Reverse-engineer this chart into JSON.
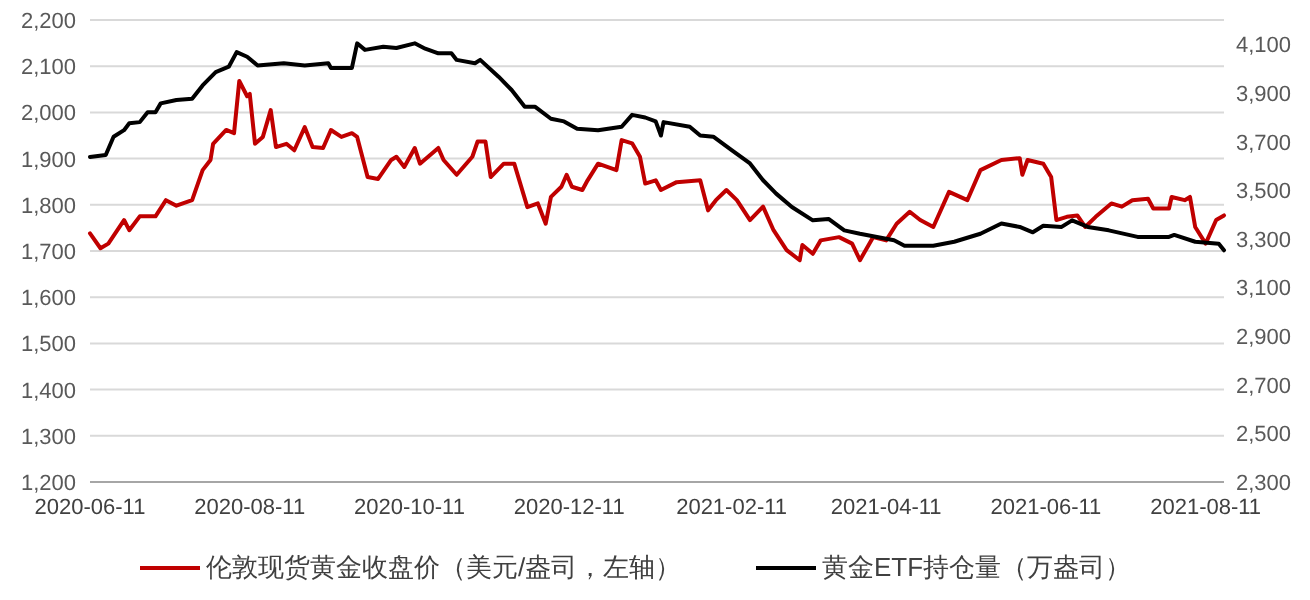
{
  "chart_data": {
    "type": "line",
    "legend": "bottom",
    "grid": "y",
    "marker": "none",
    "line_style": "solid",
    "xlim": [
      "2020-06-11",
      "2021-08-18"
    ],
    "xticks": [
      "2020-06-11",
      "2020-08-11",
      "2020-10-11",
      "2020-12-11",
      "2021-02-11",
      "2021-04-11",
      "2021-06-11",
      "2021-08-11"
    ],
    "ylim": [
      1200,
      2200
    ],
    "yticks": [
      {
        "value": 1200,
        "label": "1,200"
      },
      {
        "value": 1300,
        "label": "1,300"
      },
      {
        "value": 1400,
        "label": "1,400"
      },
      {
        "value": 1500,
        "label": "1,500"
      },
      {
        "value": 1600,
        "label": "1,600"
      },
      {
        "value": 1700,
        "label": "1,700"
      },
      {
        "value": 1800,
        "label": "1,800"
      },
      {
        "value": 1900,
        "label": "1,900"
      },
      {
        "value": 2000,
        "label": "2,000"
      },
      {
        "value": 2100,
        "label": "2,100"
      },
      {
        "value": 2200,
        "label": "2,200"
      }
    ],
    "y2lim": [
      2300,
      4200
    ],
    "y2ticks": [
      {
        "value": 2300,
        "label": "2,300"
      },
      {
        "value": 2500,
        "label": "2,500"
      },
      {
        "value": 2700,
        "label": "2,700"
      },
      {
        "value": 2900,
        "label": "2,900"
      },
      {
        "value": 3100,
        "label": "3,100"
      },
      {
        "value": 3300,
        "label": "3,300"
      },
      {
        "value": 3500,
        "label": "3,500"
      },
      {
        "value": 3700,
        "label": "3,700"
      },
      {
        "value": 3900,
        "label": "3,900"
      },
      {
        "value": 4100,
        "label": "4,100"
      }
    ],
    "series": [
      {
        "name": "伦敦现货黄金收盘价（美元/盎司，左轴）",
        "color": "#c00000",
        "x": [
          "2020-06-11",
          "2020-06-15",
          "2020-06-18",
          "2020-06-24",
          "2020-06-26",
          "2020-06-30",
          "2020-07-06",
          "2020-07-10",
          "2020-07-14",
          "2020-07-20",
          "2020-07-24",
          "2020-07-27",
          "2020-07-28",
          "2020-08-02",
          "2020-08-05",
          "2020-08-07",
          "2020-08-10",
          "2020-08-11",
          "2020-08-13",
          "2020-08-16",
          "2020-08-19",
          "2020-08-21",
          "2020-08-25",
          "2020-08-28",
          "2020-09-01",
          "2020-09-04",
          "2020-09-08",
          "2020-09-11",
          "2020-09-15",
          "2020-09-19",
          "2020-09-21",
          "2020-09-25",
          "2020-09-29",
          "2020-10-04",
          "2020-10-06",
          "2020-10-09",
          "2020-10-13",
          "2020-10-15",
          "2020-10-22",
          "2020-10-24",
          "2020-10-29",
          "2020-11-04",
          "2020-11-06",
          "2020-11-09",
          "2020-11-11",
          "2020-11-16",
          "2020-11-20",
          "2020-11-25",
          "2020-11-29",
          "2020-12-02",
          "2020-12-04",
          "2020-12-08",
          "2020-12-10",
          "2020-12-12",
          "2020-12-16",
          "2020-12-18",
          "2020-12-22",
          "2020-12-29",
          "2020-12-31",
          "2021-01-04",
          "2021-01-07",
          "2021-01-09",
          "2021-01-13",
          "2021-01-15",
          "2021-01-21",
          "2021-01-30",
          "2021-02-02",
          "2021-02-05",
          "2021-02-09",
          "2021-02-13",
          "2021-02-18",
          "2021-02-23",
          "2021-02-27",
          "2021-03-04",
          "2021-03-09",
          "2021-03-10",
          "2021-03-14",
          "2021-03-17",
          "2021-03-24",
          "2021-03-29",
          "2021-04-01",
          "2021-04-06",
          "2021-04-11",
          "2021-04-15",
          "2021-04-20",
          "2021-04-24",
          "2021-04-29",
          "2021-05-05",
          "2021-05-12",
          "2021-05-17",
          "2021-05-25",
          "2021-06-01",
          "2021-06-02",
          "2021-06-04",
          "2021-06-10",
          "2021-06-13",
          "2021-06-15",
          "2021-06-19",
          "2021-06-23",
          "2021-06-26",
          "2021-06-30",
          "2021-07-06",
          "2021-07-10",
          "2021-07-14",
          "2021-07-20",
          "2021-07-22",
          "2021-07-28",
          "2021-07-29",
          "2021-08-03",
          "2021-08-05",
          "2021-08-07",
          "2021-08-11",
          "2021-08-15",
          "2021-08-18"
        ],
        "values": [
          1738,
          1706,
          1716,
          1767,
          1745,
          1775,
          1775,
          1810,
          1798,
          1810,
          1875,
          1897,
          1932,
          1962,
          1955,
          2068,
          2035,
          2040,
          1932,
          1947,
          2005,
          1925,
          1932,
          1918,
          1968,
          1925,
          1923,
          1962,
          1947,
          1955,
          1947,
          1860,
          1856,
          1897,
          1904,
          1882,
          1923,
          1889,
          1923,
          1897,
          1865,
          1904,
          1937,
          1937,
          1860,
          1889,
          1889,
          1795,
          1803,
          1759,
          1817,
          1839,
          1865,
          1839,
          1832,
          1853,
          1889,
          1875,
          1940,
          1933,
          1904,
          1846,
          1853,
          1832,
          1849,
          1853,
          1788,
          1810,
          1832,
          1810,
          1767,
          1796,
          1745,
          1702,
          1680,
          1713,
          1694,
          1723,
          1730,
          1716,
          1680,
          1730,
          1723,
          1759,
          1785,
          1767,
          1752,
          1828,
          1810,
          1875,
          1897,
          1901,
          1865,
          1897,
          1889,
          1860,
          1767,
          1774,
          1777,
          1752,
          1774,
          1803,
          1796,
          1810,
          1813,
          1792,
          1792,
          1817,
          1810,
          1817,
          1752,
          1716,
          1767,
          1777
        ]
      },
      {
        "name": "黄金ETF持仓量（万盎司）",
        "color": "#000000",
        "axis": "y2",
        "x": [
          "2020-06-11",
          "2020-06-17",
          "2020-06-20",
          "2020-06-24",
          "2020-06-26",
          "2020-06-30",
          "2020-07-03",
          "2020-07-06",
          "2020-07-08",
          "2020-07-14",
          "2020-07-20",
          "2020-07-24",
          "2020-07-29",
          "2020-08-03",
          "2020-08-06",
          "2020-08-10",
          "2020-08-14",
          "2020-08-24",
          "2020-09-01",
          "2020-09-10",
          "2020-09-11",
          "2020-09-19",
          "2020-09-21",
          "2020-09-24",
          "2020-10-01",
          "2020-10-06",
          "2020-10-13",
          "2020-10-17",
          "2020-10-22",
          "2020-10-27",
          "2020-10-29",
          "2020-11-05",
          "2020-11-07",
          "2020-11-14",
          "2020-11-19",
          "2020-11-24",
          "2020-11-28",
          "2020-12-04",
          "2020-12-09",
          "2020-12-14",
          "2020-12-22",
          "2020-12-31",
          "2021-01-04",
          "2021-01-09",
          "2021-01-13",
          "2021-01-15",
          "2021-01-16",
          "2021-01-26",
          "2021-01-30",
          "2021-02-04",
          "2021-02-11",
          "2021-02-18",
          "2021-02-23",
          "2021-02-28",
          "2021-03-06",
          "2021-03-14",
          "2021-03-20",
          "2021-03-26",
          "2021-04-01",
          "2021-04-14",
          "2021-04-18",
          "2021-04-29",
          "2021-05-07",
          "2021-05-17",
          "2021-05-25",
          "2021-06-01",
          "2021-06-06",
          "2021-06-10",
          "2021-06-17",
          "2021-06-21",
          "2021-06-27",
          "2021-07-05",
          "2021-07-16",
          "2021-07-28",
          "2021-07-30",
          "2021-08-07",
          "2021-08-16",
          "2021-08-18"
        ],
        "values": [
          3637,
          3645,
          3720,
          3747,
          3775,
          3780,
          3821,
          3821,
          3857,
          3871,
          3876,
          3931,
          3986,
          4008,
          4068,
          4049,
          4013,
          4022,
          4013,
          4022,
          4003,
          4003,
          4104,
          4077,
          4090,
          4085,
          4104,
          4082,
          4063,
          4063,
          4036,
          4022,
          4036,
          3967,
          3912,
          3843,
          3843,
          3794,
          3783,
          3753,
          3747,
          3761,
          3810,
          3799,
          3783,
          3725,
          3780,
          3761,
          3725,
          3720,
          3665,
          3610,
          3541,
          3486,
          3431,
          3376,
          3382,
          3335,
          3321,
          3294,
          3272,
          3272,
          3288,
          3321,
          3363,
          3349,
          3327,
          3354,
          3349,
          3376,
          3349,
          3335,
          3308,
          3308,
          3316,
          3288,
          3280,
          3253
        ]
      }
    ]
  }
}
